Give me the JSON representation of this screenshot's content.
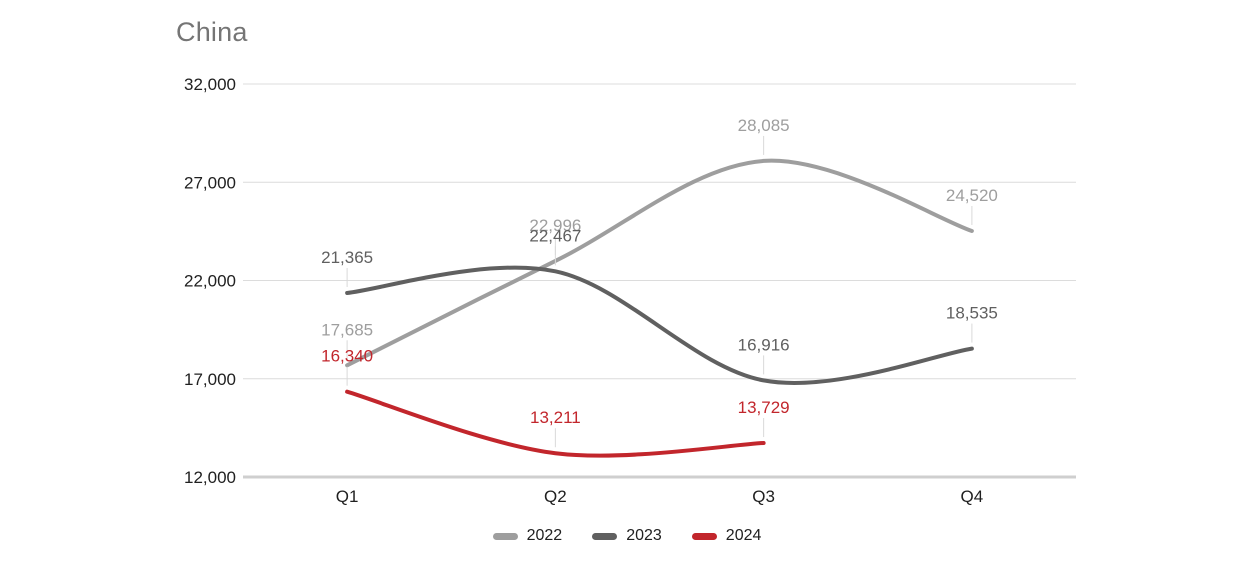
{
  "chart_data": {
    "type": "line",
    "title": "China",
    "categories": [
      "Q1",
      "Q2",
      "Q3",
      "Q4"
    ],
    "series": [
      {
        "name": "2022",
        "color": "#9e9e9e",
        "values": [
          17685,
          22996,
          28085,
          24520
        ]
      },
      {
        "name": "2023",
        "color": "#606060",
        "values": [
          21365,
          22467,
          16916,
          18535
        ]
      },
      {
        "name": "2024",
        "color": "#c2262c",
        "values": [
          16340,
          13211,
          13729,
          null
        ]
      }
    ],
    "ylim": [
      12000,
      32000
    ],
    "yticks": [
      12000,
      17000,
      22000,
      27000,
      32000
    ],
    "ytick_labels": [
      "12,000",
      "17,000",
      "22,000",
      "27,000",
      "32,000"
    ],
    "grid": "horizontal",
    "legend_position": "bottom",
    "smooth": true,
    "point_labels": true
  },
  "colors": {
    "background": "#ffffff",
    "title": "#757575",
    "axis_text": "#202020",
    "gridline": "#dcdcdc",
    "baseline": "#cfcfcf",
    "leader": "#d9d9d9"
  }
}
